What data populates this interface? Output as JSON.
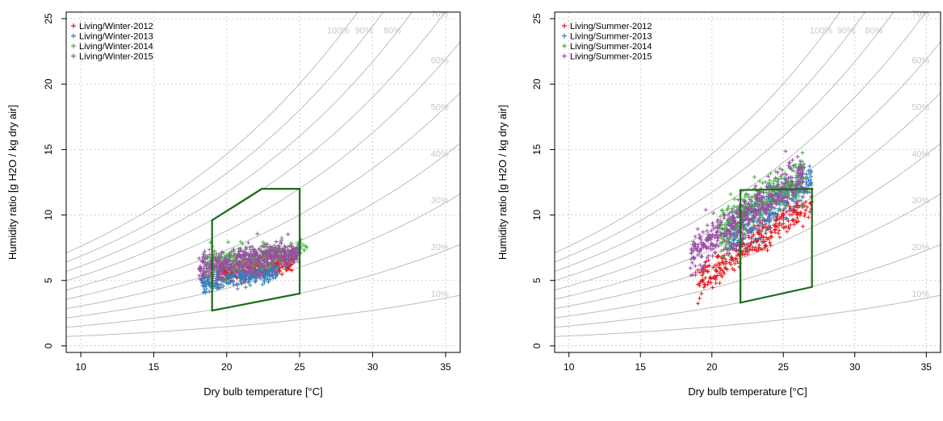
{
  "chart_data": [
    {
      "type": "scatter",
      "title": "",
      "xlabel": "Dry bulb temperature [°C]",
      "ylabel": "Humidity ratio [g H2O / kg dry air]",
      "xlim": [
        9,
        36
      ],
      "ylim": [
        -0.5,
        25.5
      ],
      "xticks": [
        "10",
        "15",
        "20",
        "25",
        "30",
        "35"
      ],
      "yticks": [
        "0",
        "5",
        "10",
        "15",
        "20",
        "25"
      ],
      "grid": true,
      "legend_position": "top-left",
      "rh_lines": [
        "100%",
        "90%",
        "80%",
        "70%",
        "60%",
        "50%",
        "40%",
        "30%",
        "20%",
        "10%"
      ],
      "comfort_zone": {
        "color": "#1a6b1a",
        "points": [
          [
            19,
            2.7
          ],
          [
            19,
            9.6
          ],
          [
            22.4,
            12.0
          ],
          [
            25,
            12.0
          ],
          [
            25,
            4.0
          ]
        ]
      },
      "series": [
        {
          "name": "Living/Winter-2012",
          "color": "#e41a1c",
          "cluster": {
            "x_range": [
              19.5,
              24.5
            ],
            "y_center": 6.0,
            "y_spread": 0.8,
            "n": 260
          }
        },
        {
          "name": "Living/Winter-2013",
          "color": "#377eb8",
          "cluster": {
            "x_range": [
              18.3,
              23.5
            ],
            "y_center": 5.3,
            "y_spread": 0.7,
            "n": 260
          }
        },
        {
          "name": "Living/Winter-2014",
          "color": "#4daf4a",
          "cluster": {
            "x_range": [
              18.5,
              25.5
            ],
            "y_center": 6.8,
            "y_spread": 1.0,
            "n": 300
          }
        },
        {
          "name": "Living/Winter-2015",
          "color": "#984ea3",
          "cluster": {
            "x_range": [
              18.0,
              25.0
            ],
            "y_center": 6.5,
            "y_spread": 1.0,
            "n": 420
          }
        }
      ]
    },
    {
      "type": "scatter",
      "title": "",
      "xlabel": "Dry bulb temperature [°C]",
      "ylabel": "Humidity ratio [g H2O / kg dry air]",
      "xlim": [
        9,
        36
      ],
      "ylim": [
        -0.5,
        25.5
      ],
      "xticks": [
        "10",
        "15",
        "20",
        "25",
        "30",
        "35"
      ],
      "yticks": [
        "0",
        "5",
        "10",
        "15",
        "20",
        "25"
      ],
      "grid": true,
      "legend_position": "top-left",
      "rh_lines": [
        "100%",
        "90%",
        "80%",
        "70%",
        "60%",
        "50%",
        "40%",
        "30%",
        "20%",
        "10%"
      ],
      "comfort_zone": {
        "color": "#1a6b1a",
        "points": [
          [
            22,
            3.3
          ],
          [
            22,
            11.9
          ],
          [
            27,
            12.0
          ],
          [
            27,
            4.5
          ]
        ]
      },
      "series": [
        {
          "name": "Living/Summer-2012",
          "color": "#e41a1c",
          "cluster": {
            "x_range": [
              19.0,
              27.0
            ],
            "y_center": 8.0,
            "y_spread": 1.2,
            "n": 320
          }
        },
        {
          "name": "Living/Summer-2013",
          "color": "#377eb8",
          "cluster": {
            "x_range": [
              21.0,
              27.0
            ],
            "y_center": 10.5,
            "y_spread": 1.6,
            "n": 320
          }
        },
        {
          "name": "Living/Summer-2014",
          "color": "#4daf4a",
          "cluster": {
            "x_range": [
              20.5,
              26.5
            ],
            "y_center": 11.0,
            "y_spread": 1.6,
            "n": 320
          }
        },
        {
          "name": "Living/Summer-2015",
          "color": "#984ea3",
          "cluster": {
            "x_range": [
              18.5,
              26.5
            ],
            "y_center": 10.0,
            "y_spread": 1.6,
            "n": 420
          }
        }
      ]
    }
  ]
}
